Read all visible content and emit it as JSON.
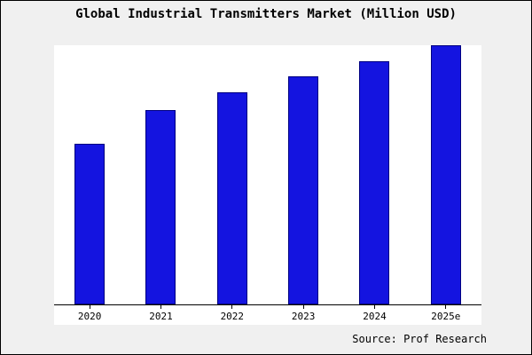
{
  "title": "Global Industrial Transmitters Market (Million USD)",
  "source": "Source: Prof Research",
  "colors": {
    "background": "#f0f0f0",
    "plot_background": "#ffffff",
    "bar_fill": "#1414e0",
    "bar_border": "#000080",
    "axis": "#000000",
    "text": "#000000"
  },
  "chart_data": {
    "type": "bar",
    "title": "Global Industrial Transmitters Market (Million USD)",
    "categories": [
      "2020",
      "2021",
      "2022",
      "2023",
      "2024",
      "2025e"
    ],
    "values": [
      62,
      75,
      82,
      88,
      94,
      100
    ],
    "xlabel": "",
    "ylabel": "",
    "ylim": [
      0,
      100
    ],
    "grid": false,
    "legend": "none",
    "annotation": "Source: Prof Research"
  }
}
